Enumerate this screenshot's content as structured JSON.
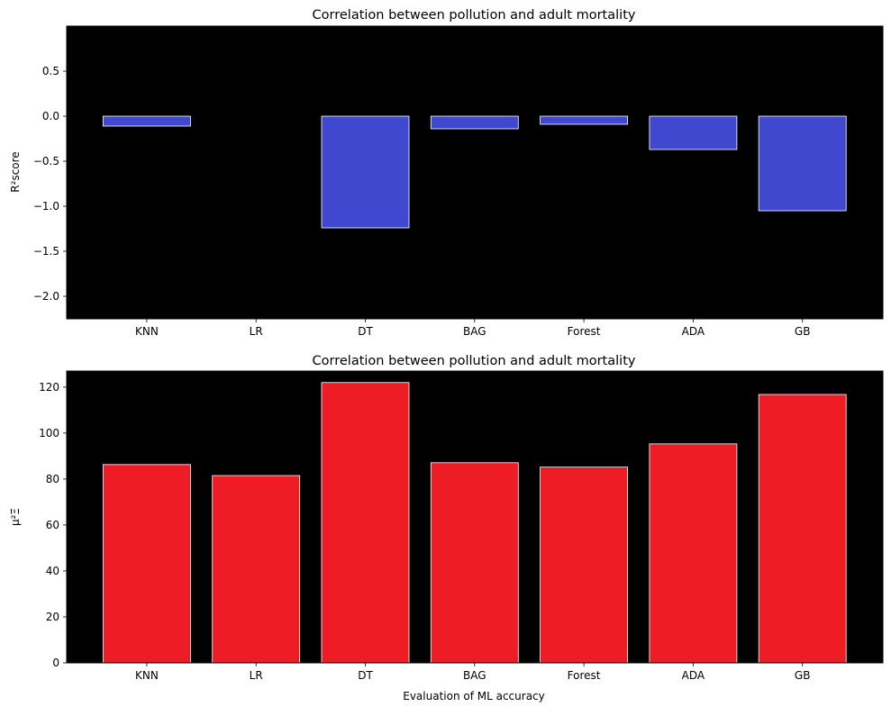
{
  "chart_data": [
    {
      "type": "bar",
      "title": "Correlation between pollution and adult mortality",
      "xlabel": "",
      "ylabel": "R²score",
      "categories": [
        "KNN",
        "LR",
        "DT",
        "BAG",
        "Forest",
        "ADA",
        "GB"
      ],
      "values": [
        -0.11,
        0.0,
        -1.24,
        -0.14,
        -0.09,
        -0.37,
        -1.05
      ],
      "ylim": [
        -2.25,
        1.0
      ],
      "yticks": [
        "0.5",
        "0.0",
        "−0.5",
        "−1.0",
        "−1.5",
        "−2.0"
      ],
      "ytick_values": [
        0.5,
        0.0,
        -0.5,
        -1.0,
        -1.5,
        -2.0
      ],
      "bar_color": "#4048d0",
      "background": "#000000",
      "grid": false,
      "legend": "none"
    },
    {
      "type": "bar",
      "title": "Correlation between pollution and adult mortality",
      "xlabel": "Evaluation of ML accuracy",
      "ylabel": "μ²Ξ",
      "categories": [
        "KNN",
        "LR",
        "DT",
        "BAG",
        "Forest",
        "ADA",
        "GB"
      ],
      "values": [
        86.3,
        81.5,
        122.0,
        87.1,
        85.2,
        95.3,
        116.8
      ],
      "ylim": [
        0,
        127
      ],
      "yticks": [
        "0",
        "20",
        "40",
        "60",
        "80",
        "100",
        "120"
      ],
      "ytick_values": [
        0,
        20,
        40,
        60,
        80,
        100,
        120
      ],
      "bar_color": "#ee1c25",
      "background": "#000000",
      "grid": false,
      "legend": "none"
    }
  ]
}
